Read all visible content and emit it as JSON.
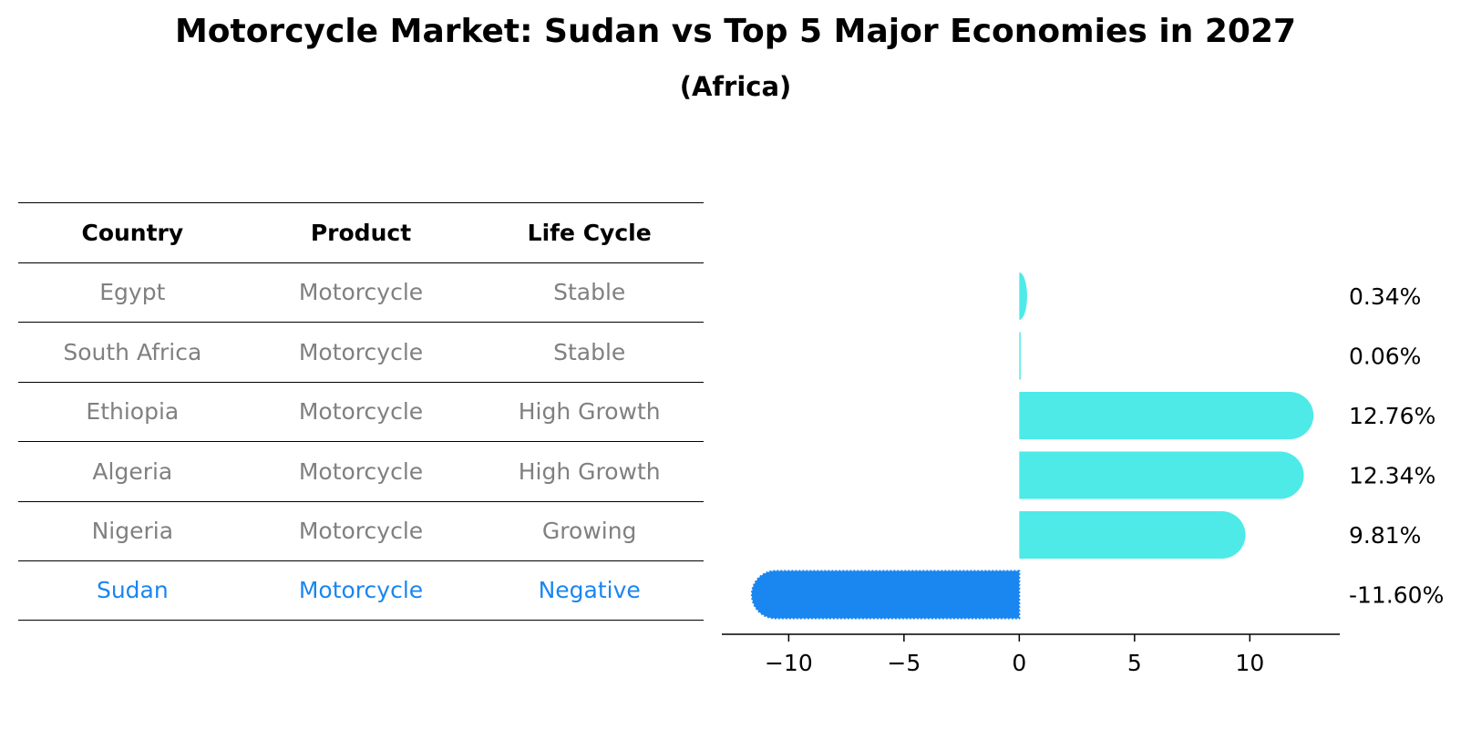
{
  "title": "Motorcycle Market: Sudan vs Top 5 Major Economies in 2027",
  "subtitle": "(Africa)",
  "table": {
    "headers": [
      "Country",
      "Product",
      "Life Cycle"
    ],
    "rows": [
      [
        "Egypt",
        "Motorcycle",
        "Stable"
      ],
      [
        "South Africa",
        "Motorcycle",
        "Stable"
      ],
      [
        "Ethiopia",
        "Motorcycle",
        "High Growth"
      ],
      [
        "Algeria",
        "Motorcycle",
        "High Growth"
      ],
      [
        "Nigeria",
        "Motorcycle",
        "Growing"
      ],
      [
        "Sudan",
        "Motorcycle",
        "Negative"
      ]
    ],
    "highlight_row": 5
  },
  "colors": {
    "highlight": "#1a86f0",
    "bar": "#4deae8",
    "muted_text": "#808080"
  },
  "chart_data": {
    "type": "bar",
    "orientation": "horizontal",
    "categories": [
      "Egypt",
      "South Africa",
      "Ethiopia",
      "Algeria",
      "Nigeria",
      "Sudan"
    ],
    "values": [
      0.34,
      0.06,
      12.76,
      12.34,
      9.81,
      -11.6
    ],
    "value_labels": [
      "0.34%",
      "0.06%",
      "12.76%",
      "12.34%",
      "9.81%",
      "-11.60%"
    ],
    "xlim": [
      -12.9,
      13.9
    ],
    "xticks": [
      -10,
      -5,
      0,
      5,
      10
    ],
    "xtick_labels": [
      "−10",
      "−5",
      "0",
      "5",
      "10"
    ],
    "xlabel": "",
    "ylabel": "",
    "grid": false
  }
}
